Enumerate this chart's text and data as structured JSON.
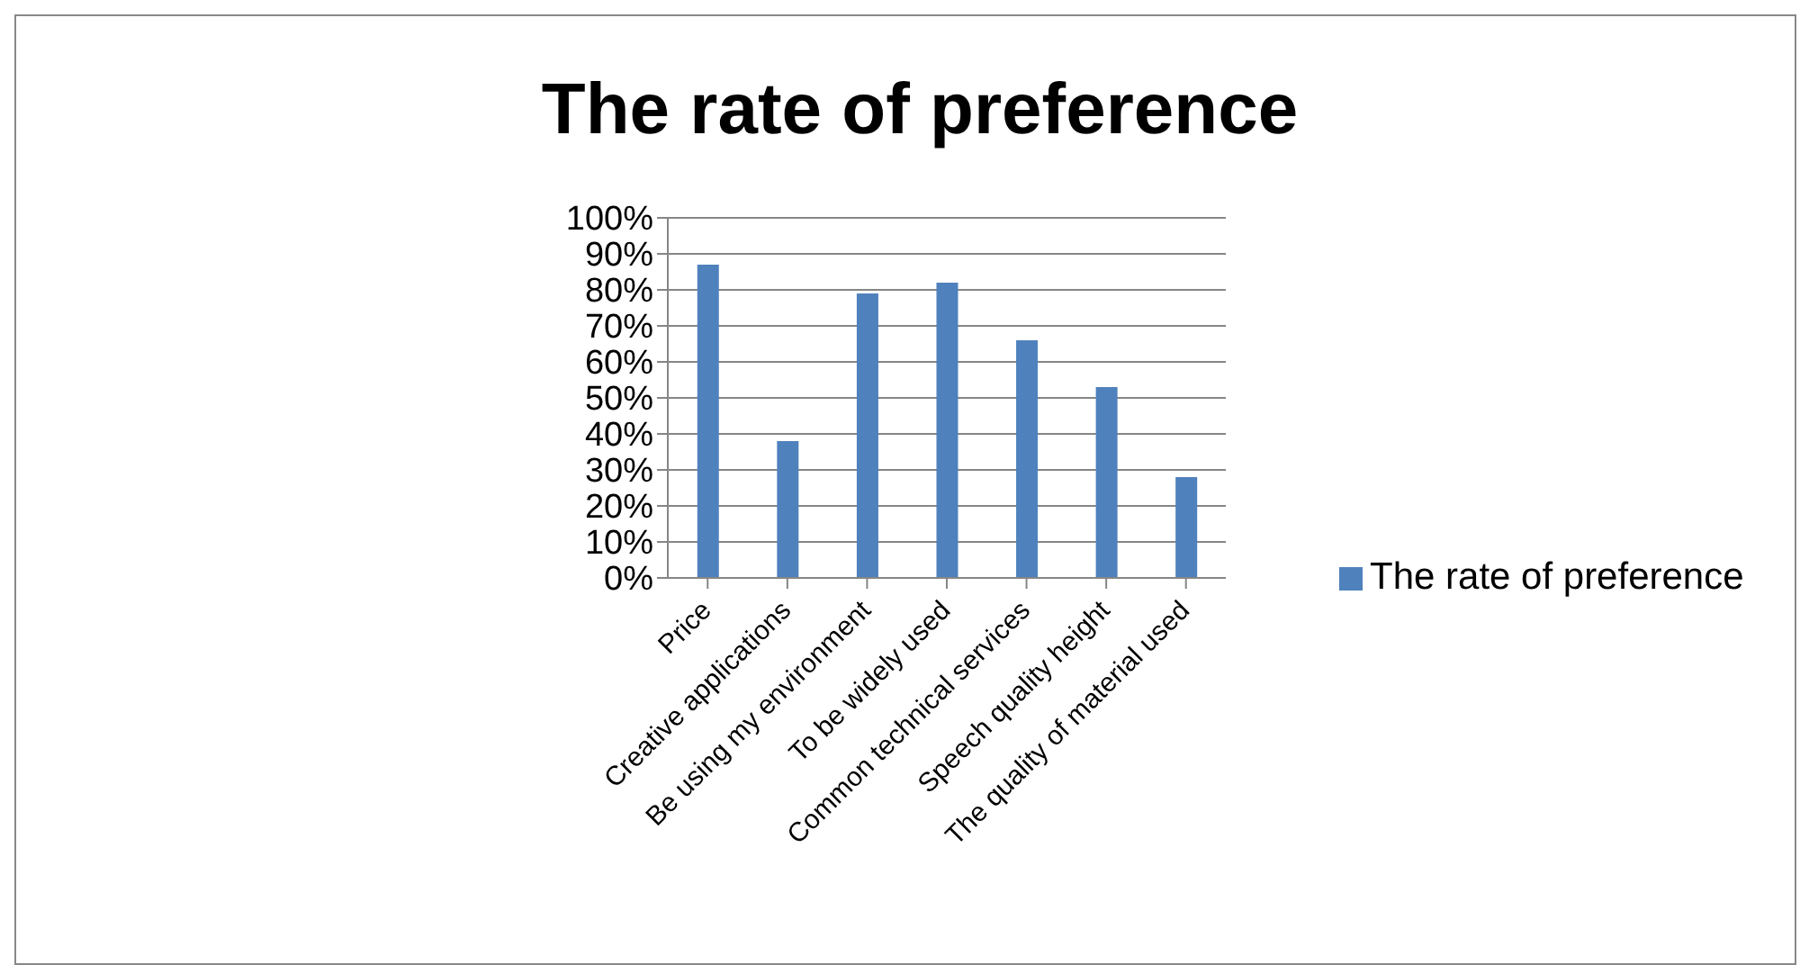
{
  "chart_data": {
    "type": "bar",
    "title": "The rate of preference",
    "categories": [
      "Price",
      "Creative applications",
      "Be using my environment",
      "To be widely used",
      "Common technical services",
      "Speech quality height",
      "The quality of material used"
    ],
    "series": [
      {
        "name": "The rate of preference",
        "color": "#4f81bd",
        "values": [
          87,
          38,
          79,
          82,
          66,
          53,
          28
        ]
      }
    ],
    "ylim": [
      0,
      100
    ],
    "yticks": [
      {
        "value": 0,
        "label": "0%"
      },
      {
        "value": 10,
        "label": "10%"
      },
      {
        "value": 20,
        "label": "20%"
      },
      {
        "value": 30,
        "label": "30%"
      },
      {
        "value": 40,
        "label": "40%"
      },
      {
        "value": 50,
        "label": "50%"
      },
      {
        "value": 60,
        "label": "60%"
      },
      {
        "value": 70,
        "label": "70%"
      },
      {
        "value": 80,
        "label": "80%"
      },
      {
        "value": 90,
        "label": "90%"
      },
      {
        "value": 100,
        "label": "100%"
      }
    ],
    "grid": "y",
    "legend": "right"
  }
}
